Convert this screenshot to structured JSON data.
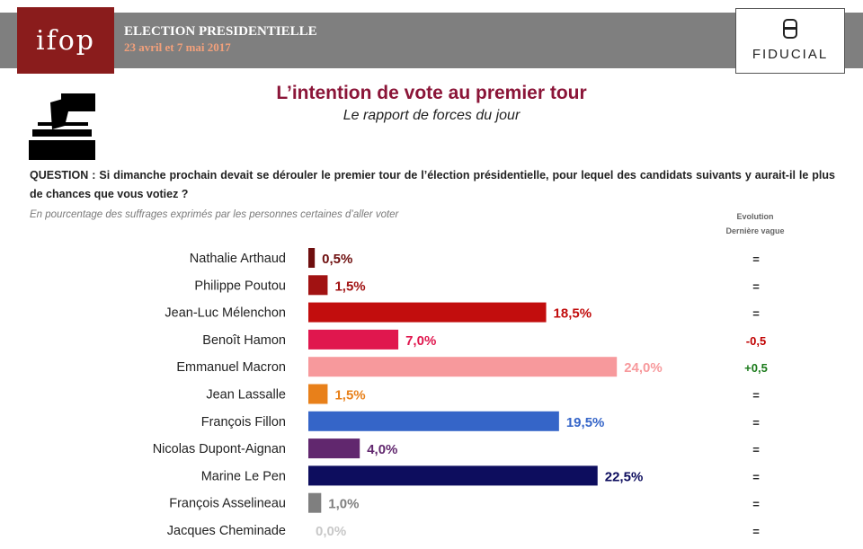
{
  "header": {
    "logo_text": "ifop",
    "title": "ELECTION PRESIDENTIELLE",
    "dates": "23 avril et 7 mai 2017",
    "partner_logo_text": "FIDUCIAL"
  },
  "main_title": "L’intention de vote au premier tour",
  "subtitle": "Le rapport de forces du jour",
  "question": "QUESTION : Si dimanche prochain devait se dérouler le premier tour de l’élection présidentielle, pour lequel des candidats suivants y aurait-il le plus de chances que vous votiez ?",
  "note": "En pourcentage des suffrages exprimés par les personnes certaines d’aller voter",
  "evolution_header": [
    "Evolution",
    "Dernière vague"
  ],
  "chart_data": {
    "type": "bar",
    "orientation": "horizontal",
    "unit": "%",
    "xlim": [
      0,
      28
    ],
    "categories": [
      "Nathalie Arthaud",
      "Philippe Poutou",
      "Jean-Luc Mélenchon",
      "Benoît Hamon",
      "Emmanuel Macron",
      "Jean Lassalle",
      "François Fillon",
      "Nicolas Dupont-Aignan",
      "Marine Le Pen",
      "François Asselineau",
      "Jacques Cheminade"
    ],
    "values": [
      0.5,
      1.5,
      18.5,
      7.0,
      24.0,
      1.5,
      19.5,
      4.0,
      22.5,
      1.0,
      0.0
    ],
    "value_labels": [
      "0,5%",
      "1,5%",
      "18,5%",
      "7,0%",
      "24,0%",
      "1,5%",
      "19,5%",
      "4,0%",
      "22,5%",
      "1,0%",
      "0,0%"
    ],
    "colors": [
      "#6e0e0e",
      "#a11212",
      "#c20d0d",
      "#e0174e",
      "#f7999c",
      "#e8801a",
      "#3565c8",
      "#61276e",
      "#0d0d5e",
      "#7f7f7f",
      "#c8c8c8"
    ],
    "evolution": [
      "=",
      "=",
      "=",
      "-0,5",
      "+0,5",
      "=",
      "=",
      "=",
      "=",
      "=",
      "="
    ],
    "evolution_colors": [
      "#222222",
      "#222222",
      "#222222",
      "#c00000",
      "#1a7a1a",
      "#222222",
      "#222222",
      "#222222",
      "#222222",
      "#222222",
      "#222222"
    ]
  }
}
